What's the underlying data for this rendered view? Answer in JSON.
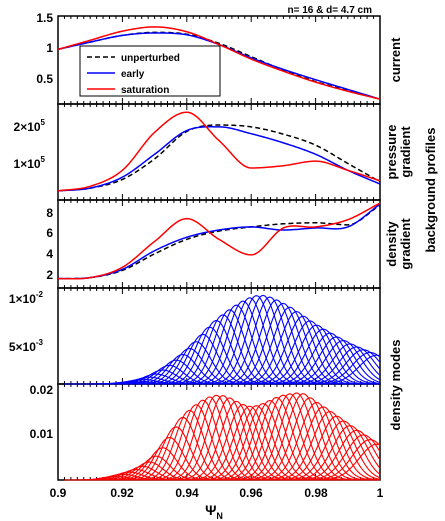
{
  "figure": {
    "header": "n= 16  &  d= 4.7 cm",
    "side_label": "background profiles",
    "xlabel_main": "Ψ",
    "xlabel_sub": "N",
    "x_ticks": [
      "0.9",
      "0.92",
      "0.94",
      "0.96",
      "0.98",
      "1"
    ]
  },
  "legend": {
    "entries": [
      {
        "label": "unperturbed",
        "color": "#000000",
        "dash": true
      },
      {
        "label": "early",
        "color": "#0000ff",
        "dash": false
      },
      {
        "label": "saturation",
        "color": "#ff0000",
        "dash": false
      }
    ]
  },
  "panels": {
    "current": {
      "label": "current",
      "y_ticks": [
        "1.5",
        "1",
        "0.5"
      ]
    },
    "pressure": {
      "label_top": "pressure",
      "label_bottom": "gradient",
      "y_ticks": [
        "2×10",
        "1×10"
      ],
      "tick_exp": "5"
    },
    "density": {
      "label_top": "density",
      "label_bottom": "gradient",
      "y_ticks": [
        "8",
        "6",
        "4",
        "2"
      ]
    },
    "early_modes": {
      "label": "density modes",
      "y_ticks": [
        "1×10",
        "5×10"
      ],
      "tick_exp": "-2",
      "tick_exp2": "-3",
      "bottom_tick": "0.02"
    },
    "sat_modes": {
      "y_ticks": [
        "0.01"
      ]
    }
  },
  "colors": {
    "unperturbed": "#000000",
    "early": "#0000ff",
    "saturation": "#ff0000"
  },
  "chart_data": [
    {
      "type": "line",
      "name": "current",
      "xlim": [
        0.9,
        1.0
      ],
      "ylim": [
        0.1,
        1.55
      ],
      "series": [
        {
          "name": "unperturbed",
          "x": [
            0.9,
            0.91,
            0.92,
            0.93,
            0.94,
            0.95,
            0.96,
            0.97,
            0.98,
            0.99,
            1.0
          ],
          "y": [
            1.0,
            1.12,
            1.23,
            1.28,
            1.25,
            1.1,
            0.88,
            0.66,
            0.47,
            0.32,
            0.18
          ]
        },
        {
          "name": "early",
          "x": [
            0.9,
            0.91,
            0.92,
            0.93,
            0.94,
            0.95,
            0.96,
            0.97,
            0.98,
            0.99,
            1.0
          ],
          "y": [
            1.0,
            1.12,
            1.23,
            1.27,
            1.24,
            1.08,
            0.86,
            0.67,
            0.5,
            0.34,
            0.18
          ]
        },
        {
          "name": "saturation",
          "x": [
            0.9,
            0.91,
            0.92,
            0.93,
            0.94,
            0.95,
            0.96,
            0.97,
            0.98,
            0.99,
            1.0
          ],
          "y": [
            1.0,
            1.15,
            1.3,
            1.37,
            1.29,
            1.08,
            0.84,
            0.64,
            0.46,
            0.31,
            0.18
          ]
        }
      ]
    },
    {
      "type": "line",
      "name": "pressure gradient",
      "xlim": [
        0.9,
        1.0
      ],
      "ylim": [
        30000,
        240000
      ],
      "series": [
        {
          "name": "unperturbed",
          "x": [
            0.9,
            0.91,
            0.92,
            0.93,
            0.94,
            0.95,
            0.96,
            0.97,
            0.98,
            0.99,
            1.0
          ],
          "y": [
            50000,
            56000,
            75000,
            120000,
            180000,
            194000,
            190000,
            174000,
            150000,
            110000,
            70000
          ]
        },
        {
          "name": "early",
          "x": [
            0.9,
            0.91,
            0.92,
            0.93,
            0.94,
            0.95,
            0.96,
            0.97,
            0.98,
            0.99,
            1.0
          ],
          "y": [
            50000,
            56000,
            80000,
            130000,
            182000,
            190000,
            175000,
            155000,
            130000,
            95000,
            65000
          ]
        },
        {
          "name": "saturation",
          "x": [
            0.9,
            0.91,
            0.92,
            0.93,
            0.94,
            0.95,
            0.96,
            0.97,
            0.98,
            0.99,
            1.0
          ],
          "y": [
            50000,
            60000,
            95000,
            178000,
            222000,
            160000,
            100000,
            105000,
            115000,
            95000,
            72000
          ]
        }
      ]
    },
    {
      "type": "line",
      "name": "density gradient",
      "xlim": [
        0.9,
        1.0
      ],
      "ylim": [
        0.3,
        8.8
      ],
      "series": [
        {
          "name": "unperturbed",
          "x": [
            0.9,
            0.91,
            0.92,
            0.93,
            0.94,
            0.95,
            0.96,
            0.97,
            0.98,
            0.99,
            1.0
          ],
          "y": [
            1.2,
            1.3,
            2.0,
            3.6,
            5.0,
            5.8,
            6.2,
            6.5,
            6.6,
            6.4,
            8.3
          ]
        },
        {
          "name": "early",
          "x": [
            0.9,
            0.91,
            0.92,
            0.93,
            0.94,
            0.95,
            0.96,
            0.97,
            0.98,
            0.99,
            1.0
          ],
          "y": [
            1.2,
            1.3,
            2.1,
            3.9,
            5.2,
            5.9,
            6.2,
            5.9,
            6.1,
            6.2,
            8.4
          ]
        },
        {
          "name": "saturation",
          "x": [
            0.9,
            0.91,
            0.92,
            0.93,
            0.94,
            0.95,
            0.96,
            0.97,
            0.98,
            0.99,
            1.0
          ],
          "y": [
            1.2,
            1.3,
            2.3,
            4.8,
            7.0,
            5.0,
            3.5,
            6.1,
            6.2,
            6.9,
            8.5
          ]
        }
      ]
    },
    {
      "type": "line",
      "name": "density modes early",
      "xlim": [
        0.9,
        1.0
      ],
      "ylim": [
        0.0,
        0.0105
      ],
      "mode_count": 40,
      "envelope": {
        "x": [
          0.92,
          0.93,
          0.94,
          0.95,
          0.96,
          0.963,
          0.97,
          0.98,
          0.99,
          1.0
        ],
        "y": [
          0.0,
          0.001,
          0.0036,
          0.0072,
          0.0095,
          0.0097,
          0.0088,
          0.0065,
          0.0045,
          0.003
        ]
      }
    },
    {
      "type": "line",
      "name": "density modes saturation",
      "xlim": [
        0.9,
        1.0
      ],
      "ylim": [
        0.0,
        0.0215
      ],
      "mode_count": 40,
      "envelope": {
        "x": [
          0.915,
          0.93,
          0.94,
          0.95,
          0.96,
          0.97,
          0.975,
          0.98,
          0.99,
          1.0
        ],
        "y": [
          0.0,
          0.005,
          0.015,
          0.019,
          0.0165,
          0.019,
          0.0195,
          0.0175,
          0.0125,
          0.0075
        ]
      }
    }
  ]
}
